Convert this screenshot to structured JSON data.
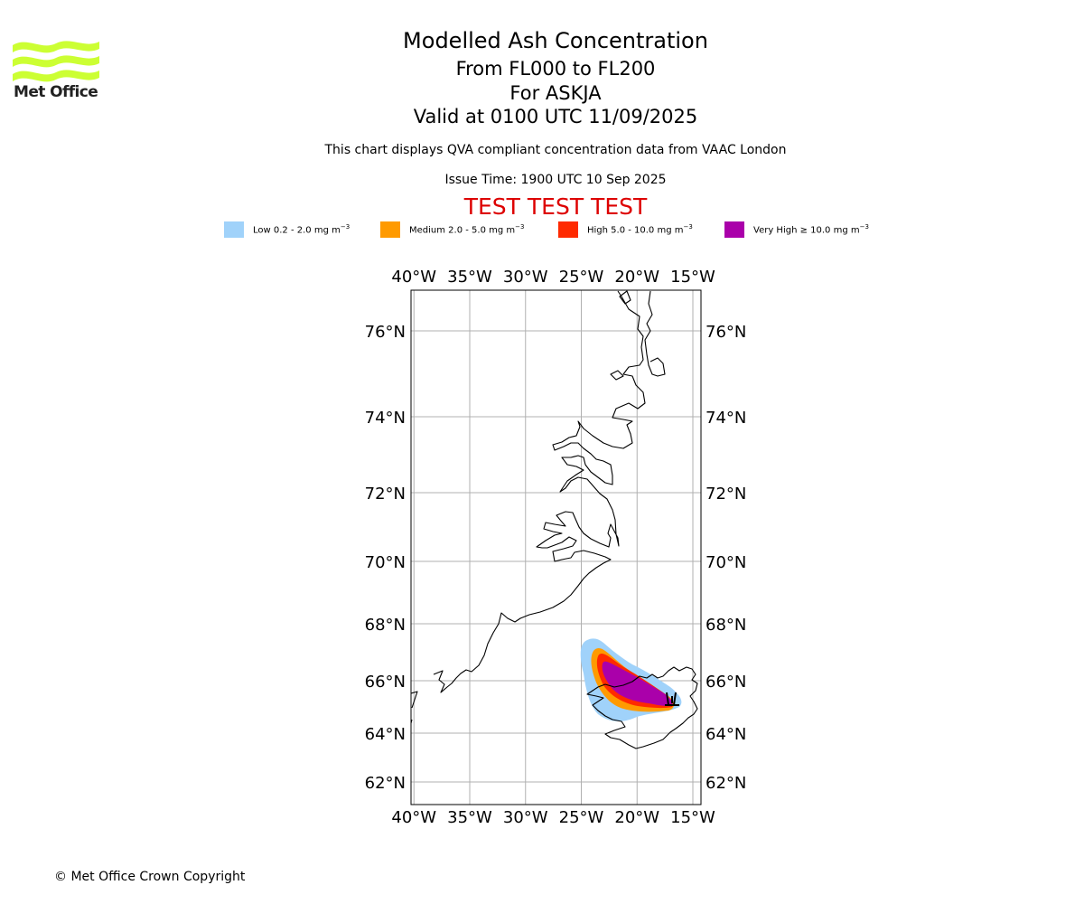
{
  "brand": {
    "name": "Met Office",
    "color": "#ccff33"
  },
  "title": "Modelled Ash Concentration",
  "levels": "From FL000 to FL200",
  "volcano": "For ASKJA",
  "valid": "Valid at 0100 UTC 11/09/2025",
  "description": "This chart displays QVA compliant concentration data from VAAC London",
  "issue_time": "Issue Time: 1900 UTC 10 Sep 2025",
  "test_banner": "TEST TEST TEST",
  "legend": [
    {
      "label": "Low 0.2 - 2.0 mg m",
      "exp": "−3",
      "color": "#a0d2fa"
    },
    {
      "label": "Medium 2.0 - 5.0 mg m",
      "exp": "−3",
      "color": "#ff9a00"
    },
    {
      "label": "High 5.0 - 10.0 mg m",
      "exp": "−3",
      "color": "#ff2a00"
    },
    {
      "label": "Very High  ≥  10.0 mg m",
      "exp": "−3",
      "color": "#aa00aa"
    }
  ],
  "map": {
    "lon_labels": [
      "40°W",
      "35°W",
      "30°W",
      "25°W",
      "20°W",
      "15°W"
    ],
    "lon_values": [
      -40,
      -35,
      -30,
      -25,
      -20,
      -15
    ],
    "lat_labels": [
      "76°N",
      "74°N",
      "72°N",
      "70°N",
      "68°N",
      "66°N",
      "64°N",
      "62°N"
    ],
    "lat_values": [
      76,
      74,
      72,
      70,
      68,
      66,
      64,
      62
    ],
    "grid": true,
    "colors": {
      "coast": "#000000",
      "grid": "#b0b0b0"
    }
  },
  "copyright": "© Met Office Crown Copyright"
}
